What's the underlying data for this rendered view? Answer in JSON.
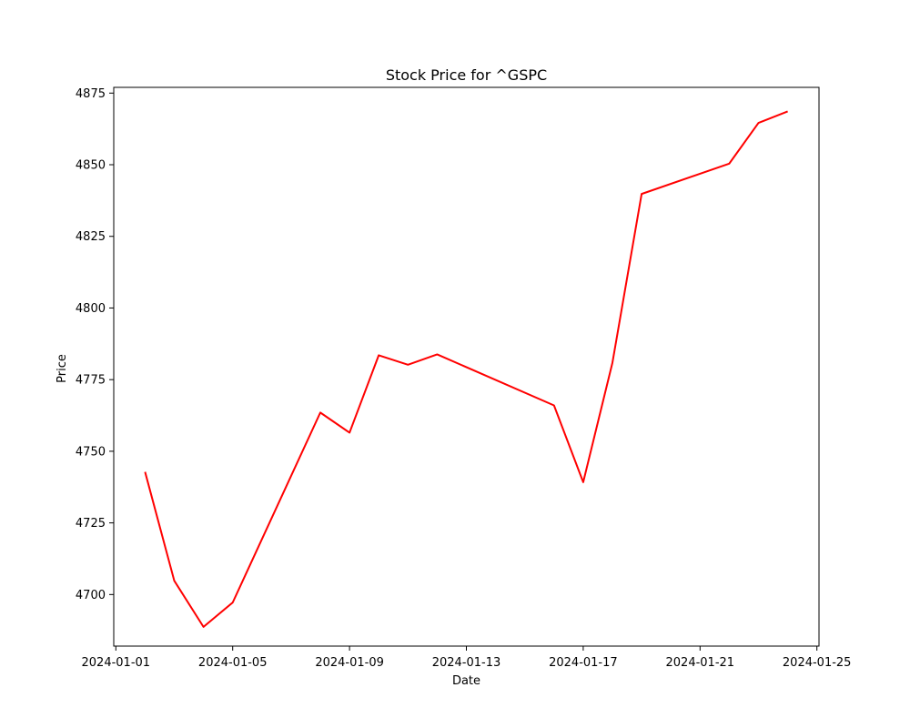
{
  "chart_data": {
    "type": "line",
    "title": "Stock Price for ^GSPC",
    "xlabel": "Date",
    "ylabel": "Price",
    "grid": false,
    "line_color": "#ff0000",
    "x_ticks": [
      "2024-01-01",
      "2024-01-05",
      "2024-01-09",
      "2024-01-13",
      "2024-01-17",
      "2024-01-21",
      "2024-01-25"
    ],
    "y_ticks": [
      4700,
      4725,
      4750,
      4775,
      4800,
      4825,
      4850,
      4875
    ],
    "xlim": [
      "2024-01-01",
      "2024-01-25"
    ],
    "ylim": [
      4682,
      4877
    ],
    "series": [
      {
        "x": [
          "2024-01-02",
          "2024-01-03",
          "2024-01-04",
          "2024-01-05",
          "2024-01-08",
          "2024-01-09",
          "2024-01-10",
          "2024-01-11",
          "2024-01-12",
          "2024-01-16",
          "2024-01-17",
          "2024-01-18",
          "2024-01-19",
          "2024-01-22",
          "2024-01-23",
          "2024-01-24"
        ],
        "y": [
          4742.8,
          4704.8,
          4688.7,
          4697.2,
          4763.5,
          4756.5,
          4783.5,
          4780.2,
          4783.8,
          4766.0,
          4739.2,
          4780.9,
          4839.8,
          4850.4,
          4864.6,
          4868.6
        ]
      }
    ]
  }
}
